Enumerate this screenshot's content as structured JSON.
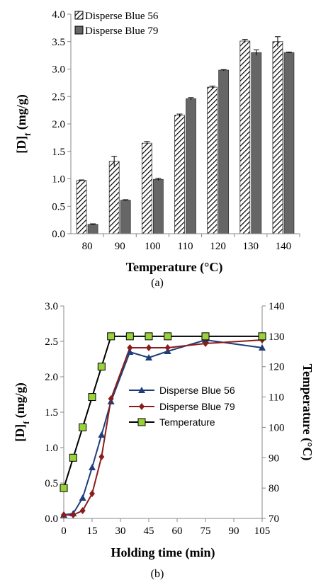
{
  "chart_data": [
    {
      "type": "bar",
      "caption": "(a)",
      "xlabel": "Temperature (°C)",
      "ylabel": "[D]f (mg/g)",
      "ylabel_main": "[D]",
      "ylabel_sub": "f",
      "ylabel_rest": " (mg/g)",
      "ylim": [
        0,
        4.0
      ],
      "yticks": [
        "0.0",
        "0.5",
        "1.0",
        "1.5",
        "2.0",
        "2.5",
        "3.0",
        "3.5",
        "4.0"
      ],
      "categories": [
        "80",
        "90",
        "100",
        "110",
        "120",
        "130",
        "140"
      ],
      "legend_position": "top-left",
      "grid": false,
      "series": [
        {
          "name": "Disperse Blue 56",
          "fill": "hatched",
          "values": [
            0.97,
            1.32,
            1.65,
            2.16,
            2.67,
            3.51,
            3.5
          ],
          "errors": [
            0.01,
            0.09,
            0.03,
            0.02,
            0.02,
            0.03,
            0.09
          ]
        },
        {
          "name": "Disperse Blue 79",
          "fill": "#666666",
          "values": [
            0.17,
            0.61,
            0.99,
            2.46,
            2.98,
            3.3,
            3.3
          ],
          "errors": [
            0.01,
            0.01,
            0.02,
            0.02,
            0.01,
            0.05,
            0.01
          ]
        }
      ]
    },
    {
      "type": "line",
      "caption": "(b)",
      "xlabel": "Holding time (min)",
      "ylabel": "[D]f (mg/g)",
      "ylabel_main": "[D]",
      "ylabel_sub": "f",
      "ylabel_rest": " (mg/g)",
      "y2label": "Temperature (°C)",
      "xlim": [
        0,
        105
      ],
      "xticks": [
        "0",
        "15",
        "30",
        "45",
        "60",
        "75",
        "90",
        "105"
      ],
      "ylim": [
        0,
        3.0
      ],
      "yticks": [
        "0.0",
        "0.5",
        "1.0",
        "1.5",
        "2.0",
        "2.5",
        "3.0"
      ],
      "y2lim": [
        70,
        140
      ],
      "y2ticks": [
        "70",
        "80",
        "90",
        "100",
        "110",
        "120",
        "130",
        "140"
      ],
      "legend_position": "center-right",
      "grid": false,
      "series": [
        {
          "name": "Disperse Blue 56",
          "axis": "left",
          "marker": "triangle",
          "color": "#1f3d7a",
          "x": [
            0,
            5,
            10,
            15,
            20,
            25,
            35,
            45,
            55,
            75,
            105
          ],
          "y": [
            0.05,
            0.07,
            0.29,
            0.72,
            1.18,
            1.65,
            2.35,
            2.27,
            2.36,
            2.52,
            2.41
          ]
        },
        {
          "name": "Disperse Blue 79",
          "axis": "left",
          "marker": "diamond",
          "color": "#8b1c1c",
          "x": [
            0,
            5,
            10,
            15,
            20,
            25,
            35,
            45,
            55,
            75,
            105
          ],
          "y": [
            0.05,
            0.05,
            0.11,
            0.35,
            0.87,
            1.69,
            2.41,
            2.41,
            2.41,
            2.47,
            2.52
          ]
        },
        {
          "name": "Temperature",
          "axis": "right",
          "marker": "square",
          "color": "#000000",
          "marker_fill": "#99d13b",
          "x": [
            0,
            5,
            10,
            15,
            20,
            25,
            35,
            45,
            55,
            75,
            105
          ],
          "y": [
            80,
            90,
            100,
            110,
            120,
            130,
            130,
            130,
            130,
            130,
            130
          ]
        }
      ]
    }
  ]
}
